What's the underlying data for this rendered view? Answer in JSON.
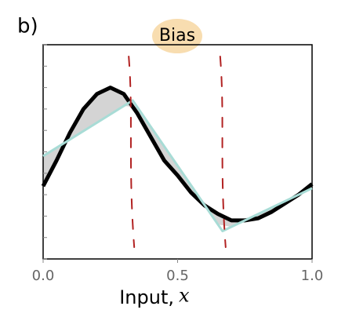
{
  "chart_data": {
    "type": "line",
    "panel_label": "b)",
    "title": "Bias",
    "xlabel": "Input,",
    "xlabel_var": "x",
    "xlim": [
      0,
      1
    ],
    "ylim": [
      0,
      1
    ],
    "xticks": [
      {
        "value": 0,
        "label": "0.0"
      },
      {
        "value": 0.5,
        "label": "0.5"
      },
      {
        "value": 1,
        "label": "1.0"
      }
    ],
    "yticks": [
      0,
      0.1,
      0.2,
      0.3,
      0.4,
      0.5,
      0.6,
      0.7,
      0.8,
      0.9,
      1
    ],
    "series": [
      {
        "color": "#000000",
        "x": [
          0,
          0.05,
          0.1,
          0.15,
          0.2,
          0.25,
          0.3,
          0.35,
          0.4,
          0.45,
          0.5,
          0.55,
          0.6,
          0.65,
          0.7,
          0.75,
          0.8,
          0.85,
          0.9,
          0.95,
          1
        ],
        "values": [
          0.34,
          0.46,
          0.59,
          0.7,
          0.77,
          0.8,
          0.77,
          0.68,
          0.57,
          0.46,
          0.39,
          0.31,
          0.25,
          0.21,
          0.18,
          0.18,
          0.19,
          0.22,
          0.26,
          0.3,
          0.35
        ]
      },
      {
        "color": "#a8dcd6",
        "x": [
          0,
          0.333,
          0.667,
          1
        ],
        "values": [
          0.48,
          0.74,
          0.13,
          0.33
        ]
      }
    ],
    "fill_between_color": "#d4d4d4",
    "vlines": [
      0.33,
      0.67
    ],
    "vline_color": "#b22222",
    "title_highlight_color": "#f8ddb0"
  }
}
